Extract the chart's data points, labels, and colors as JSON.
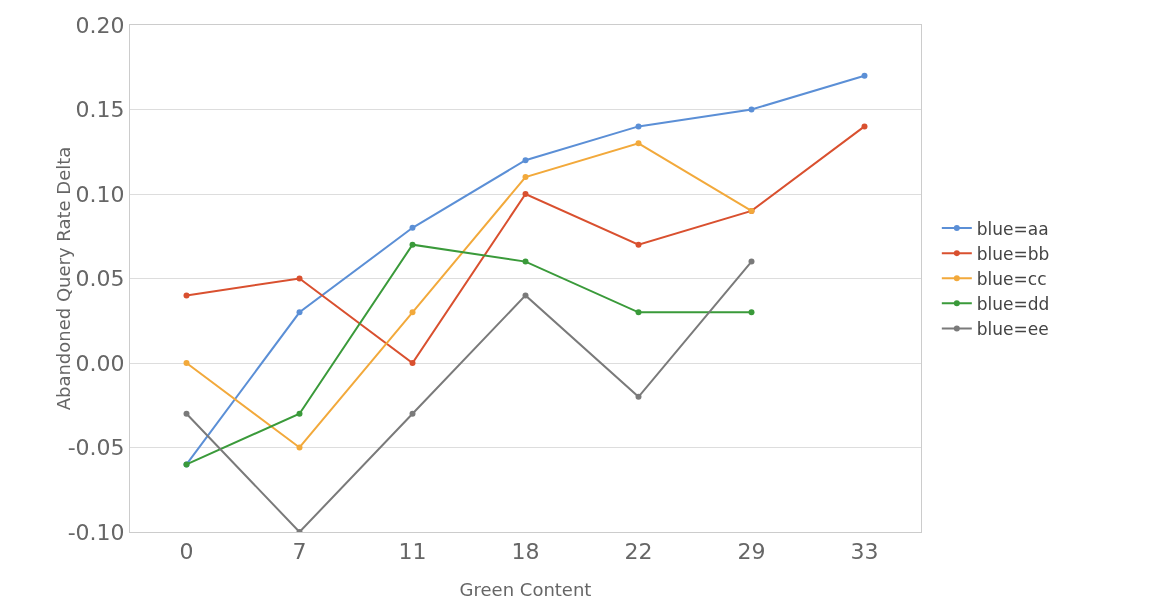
{
  "chart_data": {
    "type": "line",
    "xlabel": "Green Content",
    "ylabel": "Abandoned Query Rate Delta",
    "categories": [
      "0",
      "7",
      "11",
      "18",
      "22",
      "29",
      "33"
    ],
    "series": [
      {
        "name": "blue=aa",
        "color": "#5b8fd6",
        "values": [
          -0.06,
          0.03,
          0.08,
          0.12,
          0.14,
          0.15,
          0.17
        ]
      },
      {
        "name": "blue=bb",
        "color": "#d9502f",
        "values": [
          0.04,
          0.05,
          0.0,
          0.1,
          0.07,
          0.09,
          0.14
        ]
      },
      {
        "name": "blue=cc",
        "color": "#f2a93b",
        "values": [
          0.0,
          -0.05,
          0.03,
          0.11,
          0.13,
          0.09,
          null
        ]
      },
      {
        "name": "blue=dd",
        "color": "#3a9a3a",
        "values": [
          -0.06,
          -0.03,
          0.07,
          0.06,
          0.03,
          0.03,
          null
        ]
      },
      {
        "name": "blue=ee",
        "color": "#7a7a7a",
        "values": [
          -0.03,
          -0.1,
          -0.03,
          0.04,
          -0.02,
          0.06,
          null
        ]
      }
    ],
    "ylim": [
      -0.1,
      0.2
    ],
    "yticks": [
      {
        "value": -0.1,
        "label": "-0.10"
      },
      {
        "value": -0.05,
        "label": "-0.05"
      },
      {
        "value": 0,
        "label": "0.00"
      },
      {
        "value": 0.05,
        "label": "0.05"
      },
      {
        "value": 0.1,
        "label": "0.10"
      },
      {
        "value": 0.15,
        "label": "0.15"
      },
      {
        "value": 0.2,
        "label": "0.20"
      }
    ],
    "grid": "y",
    "legend": "right",
    "marker": "circle",
    "line_style": "solid"
  }
}
